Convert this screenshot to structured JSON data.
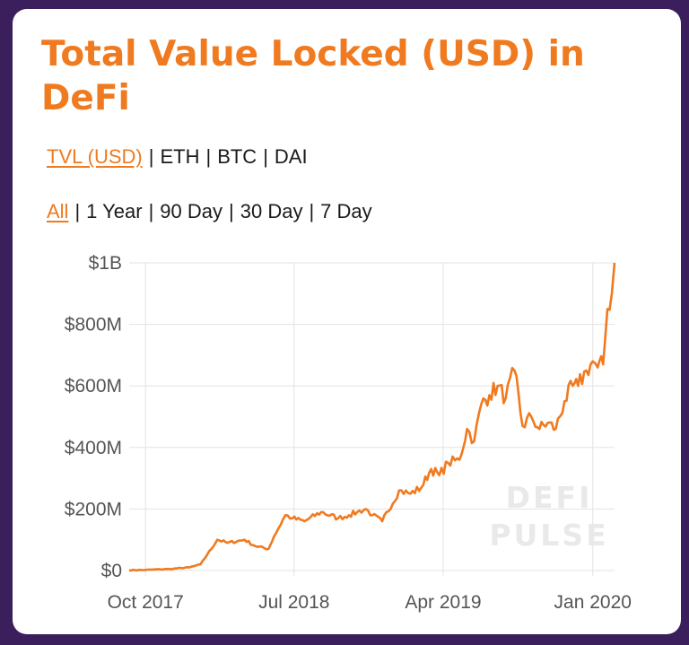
{
  "page": {
    "title": "Total Value Locked (USD) in DeFi",
    "accent_color": "#f07a1f",
    "background_color": "#3b1f5c"
  },
  "unit_tabs": [
    {
      "label": "TVL (USD)",
      "active": true
    },
    {
      "label": "ETH",
      "active": false
    },
    {
      "label": "BTC",
      "active": false
    },
    {
      "label": "DAI",
      "active": false
    }
  ],
  "range_tabs": [
    {
      "label": "All",
      "active": true
    },
    {
      "label": "1 Year",
      "active": false
    },
    {
      "label": "90 Day",
      "active": false
    },
    {
      "label": "30 Day",
      "active": false
    },
    {
      "label": "7 Day",
      "active": false
    }
  ],
  "watermark": [
    "DEFI",
    "PULSE"
  ],
  "chart_data": {
    "type": "line",
    "title": "Total Value Locked (USD) in DeFi",
    "xlabel": "",
    "ylabel": "",
    "x_ticks": [
      "Oct 2017",
      "Jul 2018",
      "Apr 2019",
      "Jan 2020"
    ],
    "y_ticks": [
      "$0",
      "$200M",
      "$400M",
      "$600M",
      "$800M",
      "$1B"
    ],
    "ylim": [
      0,
      1000000000
    ],
    "xlim": [
      "2017-09-01",
      "2020-02-10"
    ],
    "grid": true,
    "legend": "none",
    "series": [
      {
        "color": "#f07a1f",
        "x": [
          "2017-09-01",
          "2017-10-01",
          "2017-11-15",
          "2017-12-20",
          "2018-01-10",
          "2018-02-10",
          "2018-03-01",
          "2018-04-01",
          "2018-04-20",
          "2018-05-15",
          "2018-05-25",
          "2018-06-15",
          "2018-06-28",
          "2018-07-20",
          "2018-08-20",
          "2018-09-20",
          "2018-10-10",
          "2018-10-25",
          "2018-11-10",
          "2018-11-22",
          "2018-12-10",
          "2019-01-10",
          "2019-01-31",
          "2019-02-20",
          "2019-03-10",
          "2019-03-25",
          "2019-04-10",
          "2019-05-01",
          "2019-05-15",
          "2019-05-28",
          "2019-06-10",
          "2019-06-25",
          "2019-07-10",
          "2019-07-25",
          "2019-08-10",
          "2019-08-25",
          "2019-09-10",
          "2019-09-25",
          "2019-10-10",
          "2019-10-25",
          "2019-11-10",
          "2019-11-25",
          "2019-12-05",
          "2019-12-20",
          "2020-01-01",
          "2020-01-10",
          "2020-01-20",
          "2020-01-28",
          "2020-02-05",
          "2020-02-10"
        ],
        "y": [
          1000000,
          2000000,
          5000000,
          10000000,
          20000000,
          100000000,
          90000000,
          100000000,
          80000000,
          70000000,
          110000000,
          180000000,
          170000000,
          160000000,
          190000000,
          170000000,
          180000000,
          190000000,
          200000000,
          180000000,
          160000000,
          260000000,
          250000000,
          270000000,
          330000000,
          310000000,
          350000000,
          360000000,
          460000000,
          420000000,
          540000000,
          570000000,
          600000000,
          560000000,
          650000000,
          470000000,
          500000000,
          460000000,
          480000000,
          460000000,
          550000000,
          600000000,
          600000000,
          650000000,
          680000000,
          660000000,
          670000000,
          850000000,
          900000000,
          1000000000
        ]
      }
    ]
  }
}
